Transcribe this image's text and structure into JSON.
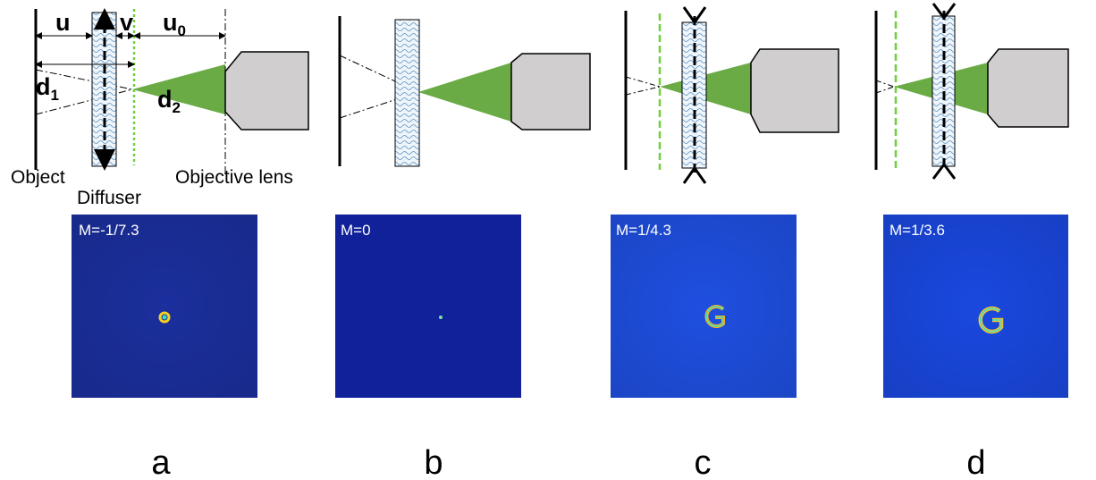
{
  "labels": {
    "u": "u",
    "v": "v",
    "u0": {
      "base": "u",
      "sub": "0"
    },
    "d1": {
      "base": "d",
      "sub": "1"
    },
    "d2": {
      "base": "d",
      "sub": "2"
    },
    "object": "Object",
    "diffuser": "Diffuser",
    "objective": "Objective lens"
  },
  "panels": [
    {
      "letter": "a",
      "magnification": "M=-1/7.3"
    },
    {
      "letter": "b",
      "magnification": "M=0"
    },
    {
      "letter": "c",
      "magnification": "M=1/4.3"
    },
    {
      "letter": "d",
      "magnification": "M=1/3.6"
    }
  ]
}
